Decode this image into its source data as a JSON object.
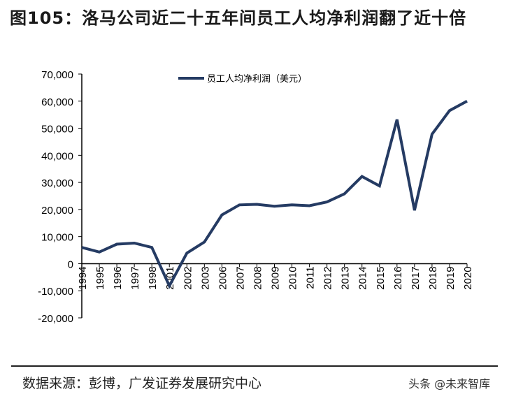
{
  "title": "图105：洛马公司近二十五年间员工人均净利润翻了近十倍",
  "source": "数据来源：彭博，广发证券发展研究中心",
  "watermark": "头条 @未来智库",
  "chart_data": {
    "type": "line",
    "title": "",
    "xlabel": "",
    "ylabel": "",
    "categories": [
      "1994",
      "1995",
      "1996",
      "1997",
      "1998",
      "2001",
      "2002",
      "2003",
      "2006",
      "2007",
      "2008",
      "2009",
      "2010",
      "2011",
      "2012",
      "2013",
      "2014",
      "2015",
      "2016",
      "2017",
      "2018",
      "2019",
      "2020"
    ],
    "series": [
      {
        "name": "员工人均净利润（美元）",
        "color": "#253b63",
        "values": [
          6000,
          4300,
          7200,
          7600,
          6000,
          -8200,
          3900,
          8000,
          18000,
          21700,
          21900,
          21200,
          21700,
          21400,
          22800,
          25800,
          32200,
          28700,
          53200,
          19700,
          47800,
          56500,
          60000
        ]
      }
    ],
    "ylim": [
      -20000,
      70000
    ],
    "yticks": [
      70000,
      60000,
      50000,
      40000,
      30000,
      20000,
      10000,
      0,
      -10000,
      -20000
    ],
    "ytick_labels": [
      "70,000",
      "60,000",
      "50,000",
      "40,000",
      "30,000",
      "20,000",
      "10,000",
      "0",
      "-10,000",
      "-20,000"
    ],
    "legend_position": "top-center",
    "grid": false
  }
}
